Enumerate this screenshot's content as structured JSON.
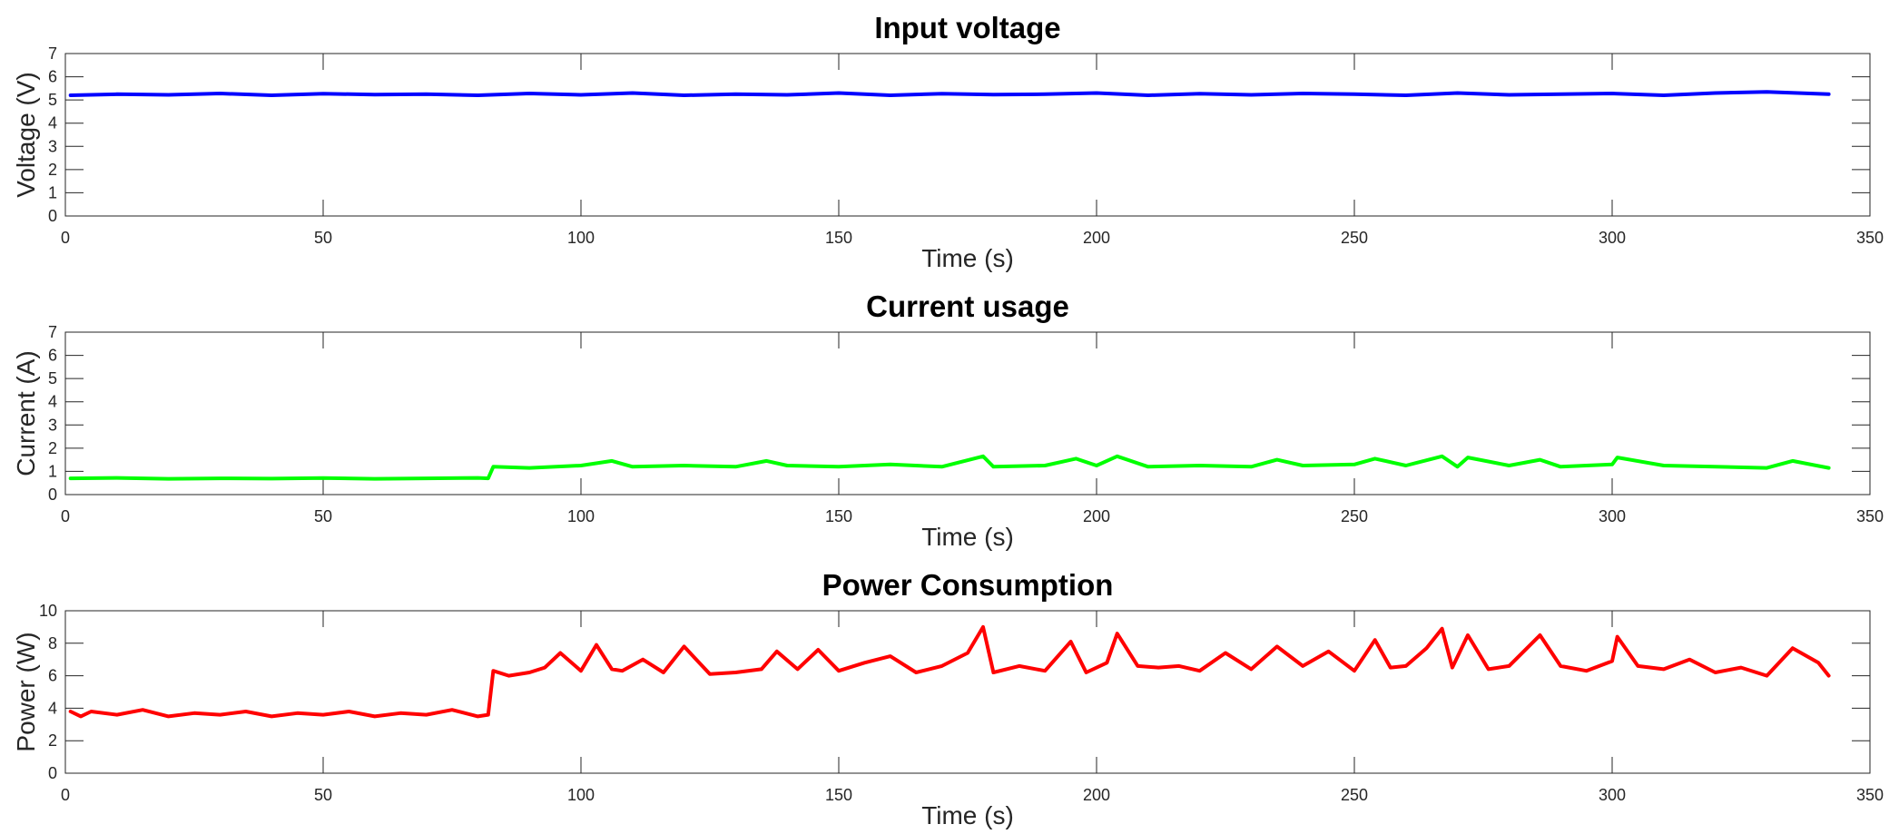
{
  "chart_data": [
    {
      "type": "line",
      "title": "Input voltage",
      "xlabel": "Time (s)",
      "ylabel": "Voltage (V)",
      "xlim": [
        0,
        350
      ],
      "ylim": [
        0,
        7
      ],
      "xticks": [
        0,
        50,
        100,
        150,
        200,
        250,
        300,
        350
      ],
      "yticks": [
        0,
        1,
        2,
        3,
        4,
        5,
        6,
        7
      ],
      "grid": false,
      "color": "#0000ff",
      "series": [
        {
          "x": [
            1,
            10,
            20,
            30,
            40,
            50,
            60,
            70,
            80,
            90,
            100,
            110,
            120,
            130,
            140,
            150,
            160,
            170,
            180,
            190,
            200,
            210,
            220,
            230,
            240,
            250,
            260,
            270,
            280,
            290,
            300,
            310,
            320,
            330,
            342
          ],
          "values": [
            5.2,
            5.25,
            5.22,
            5.28,
            5.2,
            5.27,
            5.23,
            5.25,
            5.2,
            5.28,
            5.22,
            5.3,
            5.2,
            5.25,
            5.22,
            5.3,
            5.2,
            5.27,
            5.23,
            5.25,
            5.3,
            5.2,
            5.27,
            5.22,
            5.28,
            5.25,
            5.2,
            5.3,
            5.22,
            5.25,
            5.28,
            5.2,
            5.3,
            5.35,
            5.25
          ]
        }
      ]
    },
    {
      "type": "line",
      "title": "Current usage",
      "xlabel": "Time (s)",
      "ylabel": "Current (A)",
      "xlim": [
        0,
        350
      ],
      "ylim": [
        0,
        7
      ],
      "xticks": [
        0,
        50,
        100,
        150,
        200,
        250,
        300,
        350
      ],
      "yticks": [
        0,
        1,
        2,
        3,
        4,
        5,
        6,
        7
      ],
      "grid": false,
      "color": "#00ff00",
      "series": [
        {
          "x": [
            1,
            10,
            20,
            30,
            40,
            50,
            60,
            70,
            80,
            82,
            83,
            90,
            100,
            106,
            110,
            120,
            130,
            136,
            140,
            150,
            160,
            170,
            178,
            180,
            190,
            196,
            200,
            204,
            210,
            220,
            230,
            235,
            240,
            250,
            254,
            260,
            267,
            270,
            272,
            280,
            286,
            290,
            300,
            301,
            310,
            320,
            330,
            335,
            342
          ],
          "values": [
            0.7,
            0.72,
            0.68,
            0.7,
            0.69,
            0.71,
            0.68,
            0.7,
            0.72,
            0.7,
            1.2,
            1.15,
            1.25,
            1.45,
            1.2,
            1.25,
            1.2,
            1.45,
            1.25,
            1.2,
            1.3,
            1.2,
            1.65,
            1.2,
            1.25,
            1.55,
            1.25,
            1.65,
            1.2,
            1.25,
            1.2,
            1.5,
            1.25,
            1.3,
            1.55,
            1.25,
            1.65,
            1.2,
            1.6,
            1.25,
            1.5,
            1.2,
            1.3,
            1.6,
            1.25,
            1.2,
            1.15,
            1.45,
            1.15
          ]
        }
      ]
    },
    {
      "type": "line",
      "title": "Power Consumption",
      "xlabel": "Time (s)",
      "ylabel": "Power (W)",
      "xlim": [
        0,
        350
      ],
      "ylim": [
        0,
        10
      ],
      "xticks": [
        0,
        50,
        100,
        150,
        200,
        250,
        300,
        350
      ],
      "yticks": [
        0,
        2,
        4,
        6,
        8,
        10
      ],
      "grid": false,
      "color": "#ff0000",
      "series": [
        {
          "x": [
            1,
            3,
            5,
            10,
            15,
            20,
            25,
            30,
            35,
            40,
            45,
            50,
            55,
            60,
            65,
            70,
            75,
            80,
            82,
            83,
            86,
            90,
            93,
            96,
            100,
            103,
            106,
            108,
            112,
            116,
            120,
            125,
            130,
            135,
            138,
            142,
            146,
            150,
            155,
            160,
            165,
            170,
            175,
            178,
            180,
            185,
            190,
            195,
            198,
            202,
            204,
            208,
            212,
            216,
            220,
            225,
            230,
            235,
            240,
            245,
            250,
            254,
            257,
            260,
            264,
            267,
            269,
            272,
            276,
            280,
            286,
            290,
            295,
            300,
            301,
            305,
            310,
            315,
            320,
            325,
            330,
            335,
            340,
            342
          ],
          "values": [
            3.8,
            3.5,
            3.8,
            3.6,
            3.9,
            3.5,
            3.7,
            3.6,
            3.8,
            3.5,
            3.7,
            3.6,
            3.8,
            3.5,
            3.7,
            3.6,
            3.9,
            3.5,
            3.6,
            6.3,
            6.0,
            6.2,
            6.5,
            7.4,
            6.3,
            7.9,
            6.4,
            6.3,
            7.0,
            6.2,
            7.8,
            6.1,
            6.2,
            6.4,
            7.5,
            6.4,
            7.6,
            6.3,
            6.8,
            7.2,
            6.2,
            6.6,
            7.4,
            9.0,
            6.2,
            6.6,
            6.3,
            8.1,
            6.2,
            6.8,
            8.6,
            6.6,
            6.5,
            6.6,
            6.3,
            7.4,
            6.4,
            7.8,
            6.6,
            7.5,
            6.3,
            8.2,
            6.5,
            6.6,
            7.7,
            8.9,
            6.5,
            8.5,
            6.4,
            6.6,
            8.5,
            6.6,
            6.3,
            6.9,
            8.4,
            6.6,
            6.4,
            7.0,
            6.2,
            6.5,
            6.0,
            7.7,
            6.8,
            6.0
          ]
        }
      ]
    }
  ]
}
